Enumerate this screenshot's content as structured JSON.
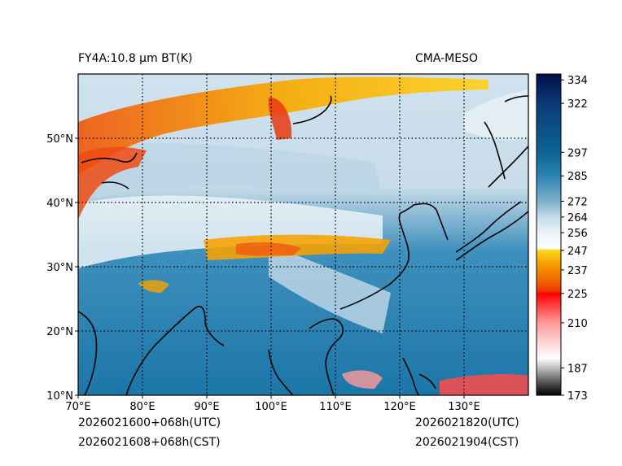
{
  "title_left": "FY4A:10.8 µm BT(K)",
  "title_right": "CMA-MESO",
  "footer": {
    "init_utc": "2026021600+068h(UTC)",
    "init_cst": "2026021608+068h(CST)",
    "valid_utc": "2026021820(UTC)",
    "valid_cst": "2026021904(CST)"
  },
  "chart_data": {
    "type": "heatmap",
    "variable": "Brightness temperature, 10.8 µm (K)",
    "x_axis": {
      "label": "",
      "range": [
        70,
        140
      ],
      "ticks": [
        "70°E",
        "80°E",
        "90°E",
        "100°E",
        "110°E",
        "120°E",
        "130°E"
      ],
      "tick_values": [
        70,
        80,
        90,
        100,
        110,
        120,
        130
      ]
    },
    "y_axis": {
      "label": "",
      "range": [
        10,
        60
      ],
      "ticks": [
        "10°N",
        "20°N",
        "30°N",
        "40°N",
        "50°N"
      ],
      "tick_values": [
        10,
        20,
        30,
        40,
        50
      ]
    },
    "grid": "dotted",
    "colorbar": {
      "range": [
        173,
        337
      ],
      "ticks": [
        334,
        322,
        297,
        285,
        272,
        264,
        256,
        247,
        237,
        225,
        210,
        187,
        173
      ],
      "stops": [
        {
          "value": 173,
          "color": "#000000"
        },
        {
          "value": 180,
          "color": "#5a5a5a"
        },
        {
          "value": 187,
          "color": "#bfbfbf"
        },
        {
          "value": 192,
          "color": "#ffffff"
        },
        {
          "value": 200,
          "color": "#ffd4d4"
        },
        {
          "value": 210,
          "color": "#ff9a9a"
        },
        {
          "value": 218,
          "color": "#ff4747"
        },
        {
          "value": 225,
          "color": "#ff0000"
        },
        {
          "value": 226,
          "color": "#ee3300"
        },
        {
          "value": 232,
          "color": "#f26a00"
        },
        {
          "value": 240,
          "color": "#f79d00"
        },
        {
          "value": 247,
          "color": "#ffd520"
        },
        {
          "value": 248,
          "color": "#ffffff"
        },
        {
          "value": 256,
          "color": "#e9f1f6"
        },
        {
          "value": 264,
          "color": "#c4dbe8"
        },
        {
          "value": 272,
          "color": "#7fb1cc"
        },
        {
          "value": 285,
          "color": "#2b83b1"
        },
        {
          "value": 297,
          "color": "#0c6594"
        },
        {
          "value": 322,
          "color": "#0c3a78"
        },
        {
          "value": 337,
          "color": "#000d45"
        }
      ]
    }
  }
}
